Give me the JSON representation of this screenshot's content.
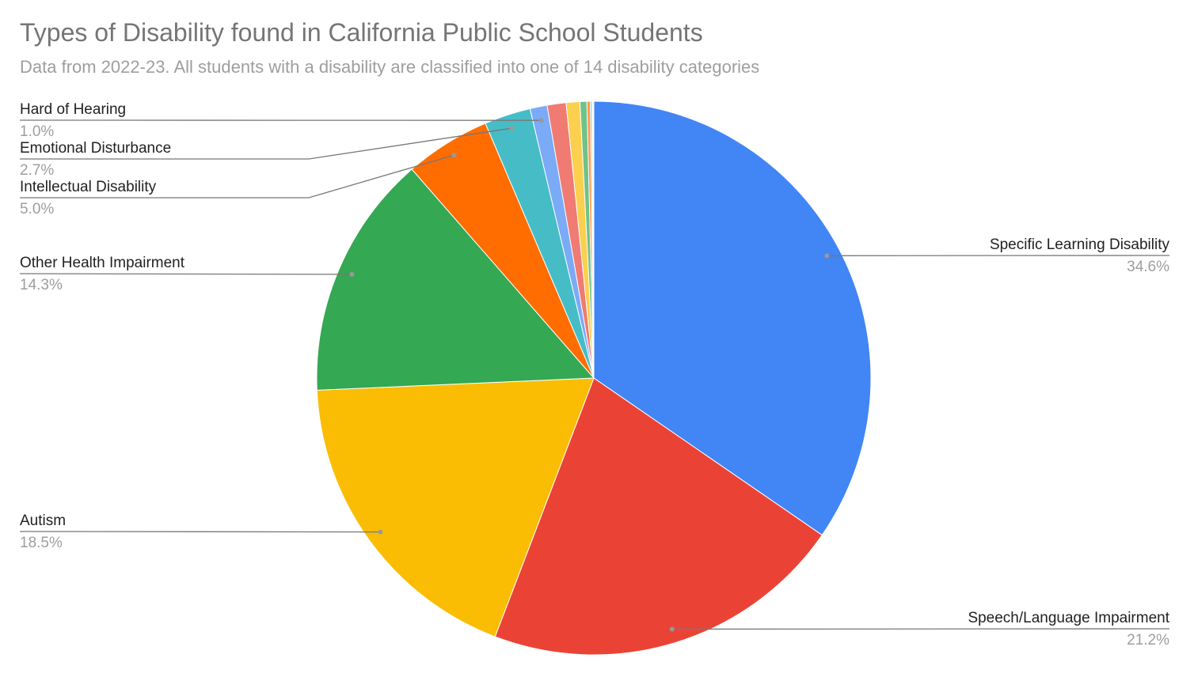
{
  "chart_data": {
    "type": "pie",
    "title": "Types of Disability found in California Public School Students",
    "subtitle": "Data from 2022-23. All students with a disability are classified into one of 14 disability categories",
    "categories": [
      "Specific Learning Disability",
      "Speech/Language Impairment",
      "Autism",
      "Other Health Impairment",
      "Intellectual Disability",
      "Emotional Disturbance",
      "Hard of Hearing",
      null,
      null,
      null,
      null,
      null,
      null,
      null
    ],
    "values": [
      34.6,
      21.2,
      18.5,
      14.3,
      5.0,
      2.7,
      1.0,
      1.1,
      0.8,
      0.4,
      0.2,
      0.1,
      0.05,
      0.05
    ],
    "value_labels": [
      "34.6%",
      "21.2%",
      "18.5%",
      "14.3%",
      "5.0%",
      "2.7%",
      "1.0%",
      null,
      null,
      null,
      null,
      null,
      null,
      null
    ],
    "colors": [
      "#4285f4",
      "#ea4335",
      "#fbbc04",
      "#34a853",
      "#ff6d01",
      "#46bdc6",
      "#7baaf7",
      "#f07b72",
      "#fcd04f",
      "#71c287",
      "#ff994d",
      "#7ed1d7",
      "#b3cefb",
      "#f7a7a0"
    ]
  }
}
